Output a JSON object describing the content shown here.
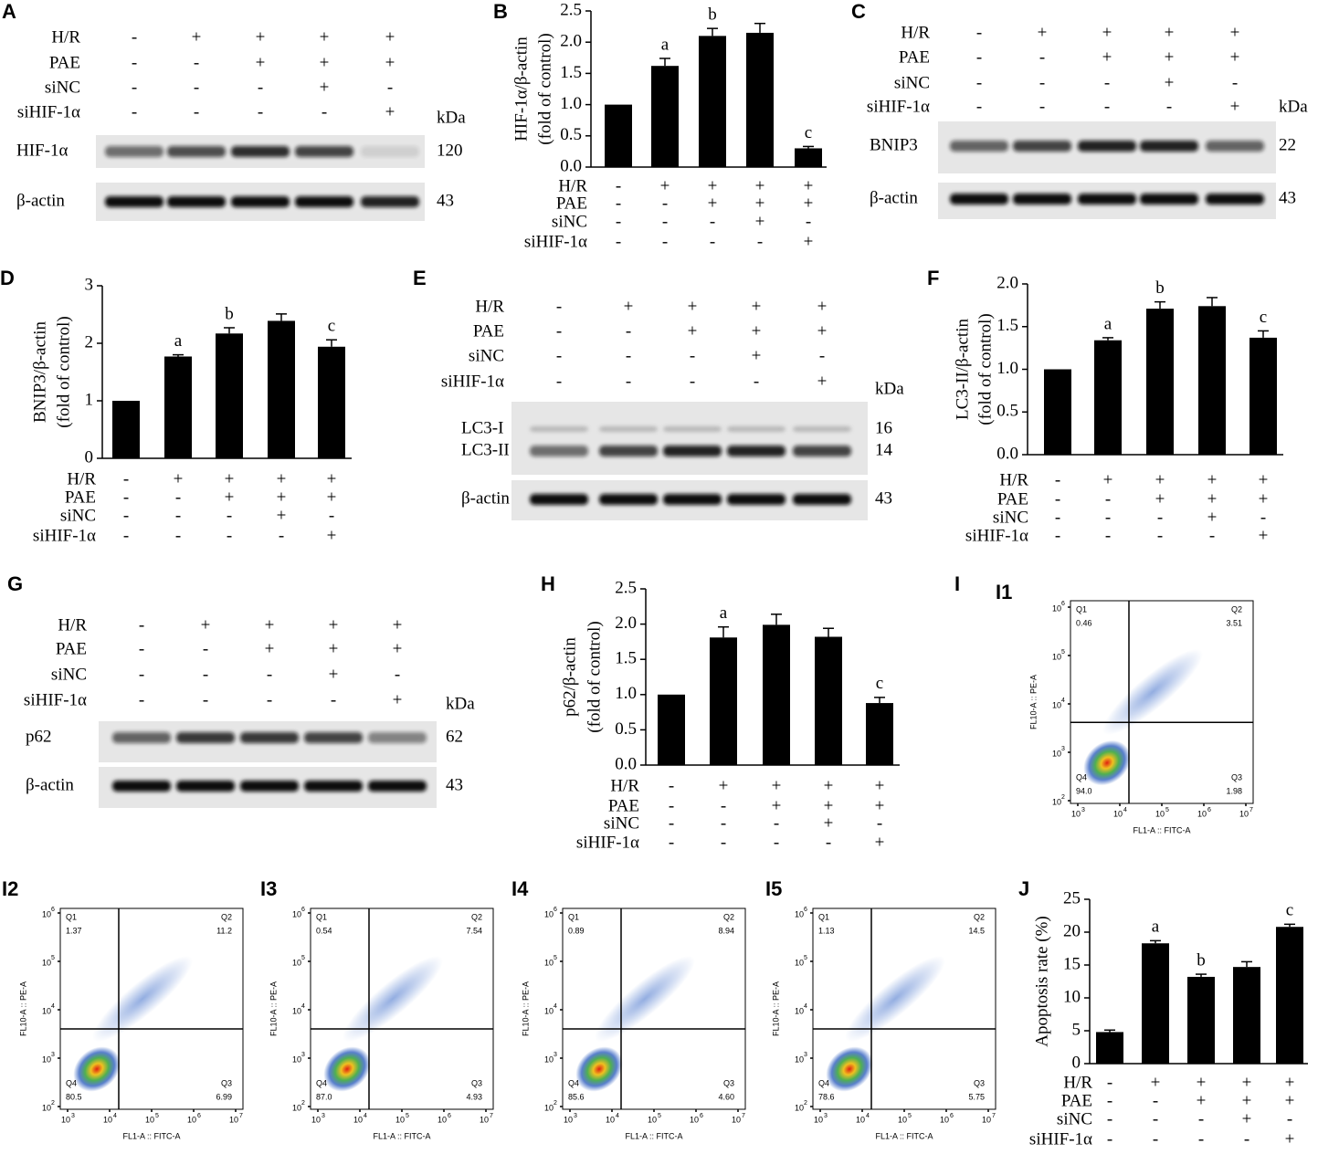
{
  "blots": [
    {
      "panel": "A",
      "rows": [
        {
          "name": "H/R",
          "signs": [
            "-",
            "+",
            "+",
            "+",
            "+"
          ]
        },
        {
          "name": "PAE",
          "signs": [
            "-",
            "-",
            "+",
            "+",
            "+"
          ]
        },
        {
          "name": "siNC",
          "signs": [
            "-",
            "-",
            "-",
            "+",
            "-"
          ]
        },
        {
          "name": "siHIF-1α",
          "signs": [
            "-",
            "-",
            "-",
            "-",
            "+"
          ]
        }
      ],
      "kda": "kDa",
      "boxes": [
        [
          {
            "name": "HIF-1α",
            "size": "120"
          }
        ],
        [
          {
            "name": "β-actin",
            "size": "43"
          }
        ]
      ]
    },
    {
      "panel": "C",
      "rows": [
        {
          "name": "H/R",
          "signs": [
            "-",
            "+",
            "+",
            "+",
            "+"
          ]
        },
        {
          "name": "PAE",
          "signs": [
            "-",
            "-",
            "+",
            "+",
            "+"
          ]
        },
        {
          "name": "siNC",
          "signs": [
            "-",
            "-",
            "-",
            "+",
            "-"
          ]
        },
        {
          "name": "siHIF-1α",
          "signs": [
            "-",
            "-",
            "-",
            "-",
            "+"
          ]
        }
      ],
      "kda": "kDa",
      "boxes": [
        [
          {
            "name": "BNIP3",
            "size": "22"
          }
        ],
        [
          {
            "name": "β-actin",
            "size": "43"
          }
        ]
      ]
    },
    {
      "panel": "E",
      "rows": [
        {
          "name": "H/R",
          "signs": [
            "-",
            "+",
            "+",
            "+",
            "+"
          ]
        },
        {
          "name": "PAE",
          "signs": [
            "-",
            "-",
            "+",
            "+",
            "+"
          ]
        },
        {
          "name": "siNC",
          "signs": [
            "-",
            "-",
            "-",
            "+",
            "-"
          ]
        },
        {
          "name": "siHIF-1α",
          "signs": [
            "-",
            "-",
            "-",
            "-",
            "+"
          ]
        }
      ],
      "kda": "kDa",
      "boxes": [
        [
          {
            "name": "LC3-I",
            "size": "16"
          },
          {
            "name": "LC3-II",
            "size": "14"
          }
        ],
        [
          {
            "name": "β-actin",
            "size": "43"
          }
        ]
      ]
    },
    {
      "panel": "G",
      "rows": [
        {
          "name": "H/R",
          "signs": [
            "-",
            "+",
            "+",
            "+",
            "+"
          ]
        },
        {
          "name": "PAE",
          "signs": [
            "-",
            "-",
            "+",
            "+",
            "+"
          ]
        },
        {
          "name": "siNC",
          "signs": [
            "-",
            "-",
            "-",
            "+",
            "-"
          ]
        },
        {
          "name": "siHIF-1α",
          "signs": [
            "-",
            "-",
            "-",
            "-",
            "+"
          ]
        }
      ],
      "kda": "kDa",
      "boxes": [
        [
          {
            "name": "p62",
            "size": "62"
          }
        ],
        [
          {
            "name": "β-actin",
            "size": "43"
          }
        ]
      ]
    }
  ],
  "chart_data": [
    {
      "type": "bar",
      "panel": "B",
      "ylabel": [
        "HIF-1α/β-actin",
        "(fold of control)"
      ],
      "color": "#000000",
      "values": [
        1.0,
        1.62,
        2.1,
        2.15,
        0.3
      ],
      "errors": [
        0,
        0.12,
        0.12,
        0.15,
        0.03
      ],
      "annotations": [
        null,
        "a",
        "b",
        null,
        "c"
      ],
      "ylim": [
        0,
        2.5
      ],
      "yticks": [
        {
          "value": 0,
          "label": "0.0"
        },
        0.5,
        {
          "value": 1,
          "label": "1.0"
        },
        1.5,
        {
          "value": 2,
          "label": "2.0"
        },
        2.5
      ],
      "rows": [
        {
          "name": "H/R",
          "signs": [
            "-",
            "+",
            "+",
            "+",
            "+"
          ]
        },
        {
          "name": "PAE",
          "signs": [
            "-",
            "-",
            "+",
            "+",
            "+"
          ]
        },
        {
          "name": "siNC",
          "signs": [
            "-",
            "-",
            "-",
            "+",
            "-"
          ]
        },
        {
          "name": "siHIF-1α",
          "signs": [
            "-",
            "-",
            "-",
            "-",
            "+"
          ]
        }
      ]
    },
    {
      "type": "bar",
      "panel": "D",
      "ylabel": [
        "BNIP3/β-actin",
        "(fold of control)"
      ],
      "color": "#000000",
      "values": [
        1.0,
        1.77,
        2.17,
        2.39,
        1.94
      ],
      "errors": [
        0,
        0.03,
        0.1,
        0.12,
        0.12
      ],
      "annotations": [
        null,
        "a",
        "b",
        null,
        "c"
      ],
      "ylim": [
        0,
        3
      ],
      "yticks": [
        0,
        1,
        2,
        3
      ],
      "rows": [
        {
          "name": "H/R",
          "signs": [
            "-",
            "+",
            "+",
            "+",
            "+"
          ]
        },
        {
          "name": "PAE",
          "signs": [
            "-",
            "-",
            "+",
            "+",
            "+"
          ]
        },
        {
          "name": "siNC",
          "signs": [
            "-",
            "-",
            "-",
            "+",
            "-"
          ]
        },
        {
          "name": "siHIF-1α",
          "signs": [
            "-",
            "-",
            "-",
            "-",
            "+"
          ]
        }
      ]
    },
    {
      "type": "bar",
      "panel": "F",
      "ylabel": [
        "LC3-II/β-actin",
        "(fold of control)"
      ],
      "color": "#000000",
      "values": [
        1.0,
        1.34,
        1.71,
        1.74,
        1.37
      ],
      "errors": [
        0,
        0.03,
        0.08,
        0.1,
        0.08
      ],
      "annotations": [
        null,
        "a",
        "b",
        null,
        "c"
      ],
      "ylim": [
        0,
        2
      ],
      "yticks": [
        {
          "value": 0,
          "label": "0.0"
        },
        0.5,
        {
          "value": 1,
          "label": "1.0"
        },
        1.5,
        {
          "value": 2,
          "label": "2.0"
        }
      ],
      "rows": [
        {
          "name": "H/R",
          "signs": [
            "-",
            "+",
            "+",
            "+",
            "+"
          ]
        },
        {
          "name": "PAE",
          "signs": [
            "-",
            "-",
            "+",
            "+",
            "+"
          ]
        },
        {
          "name": "siNC",
          "signs": [
            "-",
            "-",
            "-",
            "+",
            "-"
          ]
        },
        {
          "name": "siHIF-1α",
          "signs": [
            "-",
            "-",
            "-",
            "-",
            "+"
          ]
        }
      ]
    },
    {
      "type": "bar",
      "panel": "H",
      "ylabel": [
        "p62/β-actin",
        "(fold of control)"
      ],
      "color": "#000000",
      "values": [
        1.0,
        1.81,
        1.99,
        1.82,
        0.88
      ],
      "errors": [
        0,
        0.15,
        0.15,
        0.12,
        0.08
      ],
      "annotations": [
        null,
        "a",
        null,
        null,
        "c"
      ],
      "ylim": [
        0,
        2.5
      ],
      "yticks": [
        {
          "value": 0,
          "label": "0.0"
        },
        0.5,
        {
          "value": 1,
          "label": "1.0"
        },
        1.5,
        {
          "value": 2,
          "label": "2.0"
        },
        2.5
      ],
      "rows": [
        {
          "name": "H/R",
          "signs": [
            "-",
            "+",
            "+",
            "+",
            "+"
          ]
        },
        {
          "name": "PAE",
          "signs": [
            "-",
            "-",
            "+",
            "+",
            "+"
          ]
        },
        {
          "name": "siNC",
          "signs": [
            "-",
            "-",
            "-",
            "+",
            "-"
          ]
        },
        {
          "name": "siHIF-1α",
          "signs": [
            "-",
            "-",
            "-",
            "-",
            "+"
          ]
        }
      ]
    },
    {
      "type": "bar",
      "panel": "J",
      "ylabel": [
        "Apoptosis rate (%)"
      ],
      "color": "#000000",
      "values": [
        4.8,
        18.3,
        13.2,
        14.7,
        20.8
      ],
      "errors": [
        0.3,
        0.4,
        0.4,
        0.8,
        0.4
      ],
      "annotations": [
        null,
        "a",
        "b",
        null,
        "c"
      ],
      "ylim": [
        0,
        25
      ],
      "yticks": [
        0,
        5,
        10,
        15,
        20,
        25
      ],
      "rows": [
        {
          "name": "H/R",
          "signs": [
            "-",
            "+",
            "+",
            "+",
            "+"
          ]
        },
        {
          "name": "PAE",
          "signs": [
            "-",
            "-",
            "+",
            "+",
            "+"
          ]
        },
        {
          "name": "siNC",
          "signs": [
            "-",
            "-",
            "-",
            "+",
            "-"
          ]
        },
        {
          "name": "siHIF-1α",
          "signs": [
            "-",
            "-",
            "-",
            "-",
            "+"
          ]
        }
      ]
    }
  ],
  "flow_panel": "I",
  "flow_plots": [
    {
      "label": "I1",
      "quadrants": [
        {
          "name": "Q1",
          "value": "0.46"
        },
        {
          "name": "Q2",
          "value": "3.51"
        },
        {
          "name": "Q3",
          "value": "1.98"
        },
        {
          "name": "Q4",
          "value": "94.0"
        }
      ],
      "xlabel": "FL1-A :: FITC-A",
      "ylabel": "FL10-A :: PE-A",
      "tick_base": "10",
      "xtick_exponents": [
        "3",
        "4",
        "5",
        "6",
        "7"
      ],
      "ytick_exponents": [
        "2",
        "3",
        "4",
        "5",
        "6"
      ]
    },
    {
      "label": "I2",
      "quadrants": [
        {
          "name": "Q1",
          "value": "1.37"
        },
        {
          "name": "Q2",
          "value": "11.2"
        },
        {
          "name": "Q3",
          "value": "6.99"
        },
        {
          "name": "Q4",
          "value": "80.5"
        }
      ],
      "xlabel": "FL1-A :: FITC-A",
      "ylabel": "FL10-A :: PE-A",
      "tick_base": "10",
      "xtick_exponents": [
        "3",
        "4",
        "5",
        "6",
        "7"
      ],
      "ytick_exponents": [
        "2",
        "3",
        "4",
        "5",
        "6"
      ]
    },
    {
      "label": "I3",
      "quadrants": [
        {
          "name": "Q1",
          "value": "0.54"
        },
        {
          "name": "Q2",
          "value": "7.54"
        },
        {
          "name": "Q3",
          "value": "4.93"
        },
        {
          "name": "Q4",
          "value": "87.0"
        }
      ],
      "xlabel": "FL1-A :: FITC-A",
      "ylabel": "FL10-A :: PE-A",
      "tick_base": "10",
      "xtick_exponents": [
        "3",
        "4",
        "5",
        "6",
        "7"
      ],
      "ytick_exponents": [
        "2",
        "3",
        "4",
        "5",
        "6"
      ]
    },
    {
      "label": "I4",
      "quadrants": [
        {
          "name": "Q1",
          "value": "0.89"
        },
        {
          "name": "Q2",
          "value": "8.94"
        },
        {
          "name": "Q3",
          "value": "4.60"
        },
        {
          "name": "Q4",
          "value": "85.6"
        }
      ],
      "xlabel": "FL1-A :: FITC-A",
      "ylabel": "FL10-A :: PE-A",
      "tick_base": "10",
      "xtick_exponents": [
        "3",
        "4",
        "5",
        "6",
        "7"
      ],
      "ytick_exponents": [
        "2",
        "3",
        "4",
        "5",
        "6"
      ]
    },
    {
      "label": "I5",
      "quadrants": [
        {
          "name": "Q1",
          "value": "1.13"
        },
        {
          "name": "Q2",
          "value": "14.5"
        },
        {
          "name": "Q3",
          "value": "5.75"
        },
        {
          "name": "Q4",
          "value": "78.6"
        }
      ],
      "xlabel": "FL1-A :: FITC-A",
      "ylabel": "FL10-A :: PE-A",
      "tick_base": "10",
      "xtick_exponents": [
        "3",
        "4",
        "5",
        "6",
        "7"
      ],
      "ytick_exponents": [
        "2",
        "3",
        "4",
        "5",
        "6"
      ]
    }
  ]
}
